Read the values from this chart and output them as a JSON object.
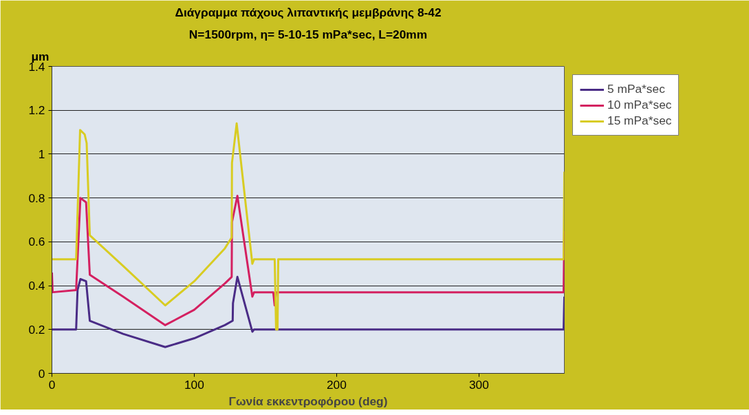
{
  "chart_data": {
    "type": "line",
    "title": "Διάγραμμα πάχους λιπαντικής μεμβράνης 8-42",
    "subtitle": "N=1500rpm, η= 5-10-15 mPa*sec, L=20mm",
    "xlabel": "Γωνία εκκεντροφόρου (deg)",
    "ylabel": "μm",
    "xlim": [
      0,
      360
    ],
    "xticks": [
      0,
      100,
      200,
      300
    ],
    "ylim": [
      0,
      1.4
    ],
    "yticks": [
      0,
      0.2,
      0.4,
      0.6,
      0.8,
      1,
      1.2,
      1.4
    ],
    "grid": "y",
    "legend": "right",
    "line_style": "solid",
    "marker": "none",
    "series": [
      {
        "name": "5 mPa*sec",
        "color": "#4a2c86",
        "x": [
          0,
          17,
          18,
          20,
          24,
          26.6,
          50,
          79.6,
          100,
          121.5,
          127,
          127.2,
          130.3,
          140.8,
          142,
          157,
          158,
          159,
          359.5,
          360
        ],
        "values": [
          0.2,
          0.2,
          0.38,
          0.43,
          0.42,
          0.24,
          0.18,
          0.12,
          0.16,
          0.22,
          0.24,
          0.32,
          0.44,
          0.19,
          0.2,
          0.2,
          0.2,
          0.2,
          0.2,
          0.35
        ]
      },
      {
        "name": "10 mPa*sec",
        "color": "#d42060",
        "x": [
          0,
          0.5,
          17,
          20,
          24,
          26.6,
          50,
          79.6,
          100,
          121.5,
          126.3,
          126.5,
          130.3,
          140.8,
          142,
          155.5,
          156.5,
          157.5,
          359.5,
          360
        ],
        "values": [
          0.46,
          0.37,
          0.38,
          0.8,
          0.78,
          0.45,
          0.35,
          0.22,
          0.29,
          0.41,
          0.44,
          0.69,
          0.81,
          0.35,
          0.37,
          0.37,
          0.31,
          0.37,
          0.37,
          0.65
        ]
      },
      {
        "name": "15 mPa*sec",
        "color": "#d8cc22",
        "x": [
          0,
          17,
          19.8,
          23,
          24.4,
          26.6,
          50,
          79.6,
          100,
          121.5,
          126.3,
          126.5,
          129.8,
          140.8,
          142,
          156.5,
          157.5,
          158.5,
          159,
          359.5,
          360
        ],
        "values": [
          0.52,
          0.52,
          1.11,
          1.09,
          1.05,
          0.63,
          0.49,
          0.31,
          0.42,
          0.57,
          0.62,
          0.96,
          1.14,
          0.5,
          0.52,
          0.52,
          0.2,
          0.2,
          0.52,
          0.52,
          0.92
        ]
      }
    ]
  }
}
